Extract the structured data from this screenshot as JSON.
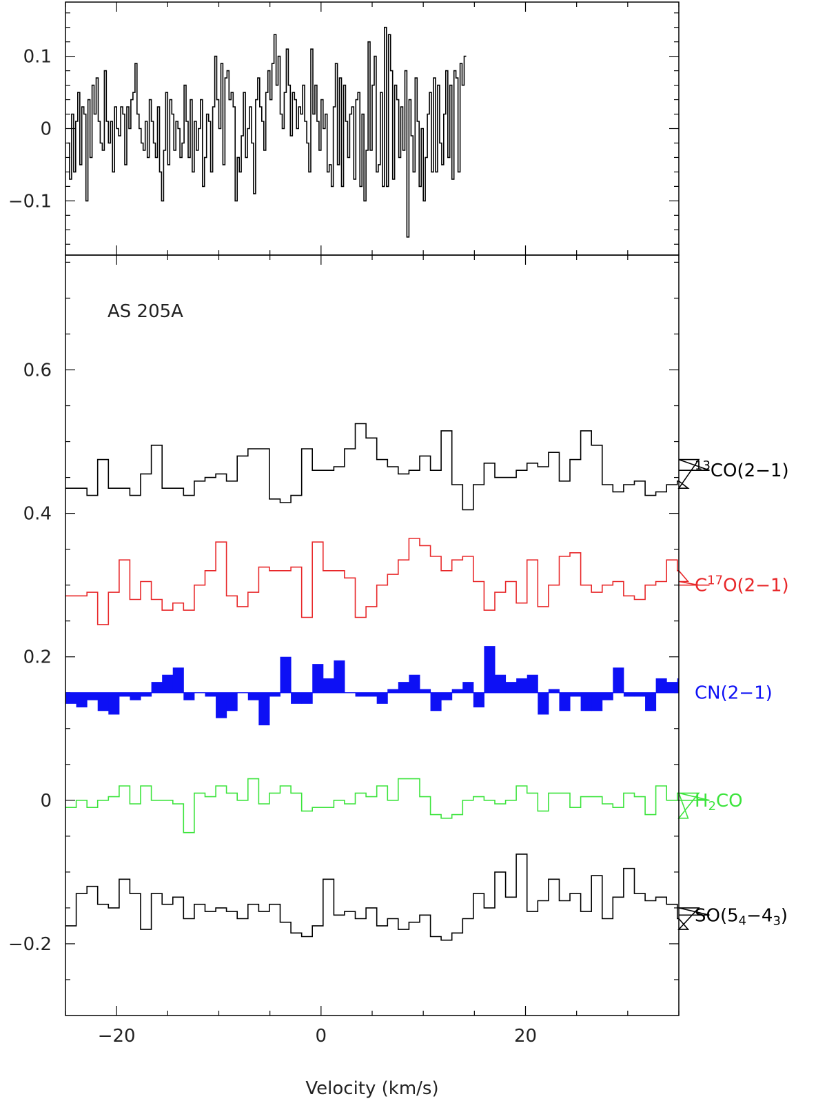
{
  "chart_data": [
    {
      "type": "line",
      "panel": "top",
      "title": "",
      "xlabel": "",
      "ylabel": "",
      "xlim": [
        -25,
        35
      ],
      "ylim": [
        -0.175,
        0.175
      ],
      "x_tick_labels": [],
      "y_ticks": [
        {
          "value": 0.1,
          "label": "0.1"
        },
        {
          "value": 0,
          "label": "0"
        },
        {
          "value": -0.1,
          "label": "−0.1"
        }
      ],
      "grid": false,
      "step": true,
      "color": "#000000",
      "x_start": -24.8,
      "x_step": 0.2,
      "values": [
        -0.02,
        -0.07,
        0.02,
        -0.06,
        0.01,
        0.05,
        -0.05,
        0.03,
        0.02,
        -0.1,
        0.04,
        -0.04,
        0.06,
        0.02,
        0.07,
        0.01,
        -0.02,
        -0.03,
        0.08,
        0.01,
        -0.02,
        0.01,
        -0.06,
        0.03,
        0.0,
        -0.01,
        0.03,
        0.02,
        -0.05,
        0.03,
        0.0,
        0.04,
        0.05,
        0.09,
        0.02,
        0.0,
        -0.02,
        -0.03,
        0.01,
        -0.04,
        0.04,
        0.01,
        -0.02,
        -0.04,
        0.03,
        -0.06,
        -0.1,
        -0.03,
        0.05,
        -0.05,
        0.04,
        0.02,
        -0.03,
        0.01,
        0.0,
        -0.04,
        -0.02,
        0.06,
        0.01,
        -0.04,
        0.04,
        -0.06,
        0.01,
        -0.03,
        0.0,
        0.04,
        -0.08,
        -0.04,
        0.02,
        0.01,
        -0.06,
        0.03,
        0.1,
        0.04,
        0.0,
        0.09,
        -0.05,
        0.07,
        0.08,
        0.04,
        0.05,
        0.03,
        -0.1,
        -0.04,
        -0.06,
        -0.01,
        0.05,
        -0.04,
        0.0,
        0.03,
        -0.02,
        -0.09,
        0.04,
        0.07,
        0.03,
        0.01,
        -0.03,
        0.05,
        0.08,
        0.04,
        0.09,
        0.13,
        0.06,
        0.1,
        0.02,
        0.0,
        0.05,
        0.11,
        0.06,
        -0.01,
        0.05,
        0.04,
        0.0,
        0.03,
        0.02,
        0.06,
        0.01,
        -0.02,
        -0.06,
        0.11,
        0.02,
        0.06,
        0.01,
        -0.03,
        0.04,
        0.0,
        0.02,
        -0.06,
        -0.05,
        -0.08,
        0.03,
        0.09,
        -0.05,
        0.07,
        -0.08,
        0.06,
        0.01,
        -0.04,
        0.02,
        0.03,
        -0.07,
        0.04,
        0.05,
        -0.08,
        0.02,
        -0.1,
        -0.03,
        0.12,
        -0.03,
        0.06,
        0.1,
        -0.06,
        -0.05,
        0.05,
        -0.08,
        0.14,
        -0.08,
        0.13,
        0.08,
        -0.07,
        0.06,
        0.04,
        -0.04,
        0.03,
        -0.03,
        0.08,
        -0.15,
        0.04,
        -0.01,
        -0.06,
        0.07,
        0.01,
        -0.08,
        0.0,
        -0.1,
        -0.04,
        0.02,
        0.05,
        -0.06,
        0.07,
        -0.06,
        0.06,
        -0.02,
        -0.05,
        0.02,
        0.08,
        -0.04,
        0.06,
        -0.07,
        0.08,
        0.07,
        -0.06,
        0.09,
        0.06,
        0.1
      ]
    },
    {
      "type": "line",
      "panel": "bottom",
      "title": "",
      "xlabel": "Velocity (km/s)",
      "ylabel": "",
      "xlim": [
        -25,
        35
      ],
      "ylim": [
        -0.3,
        0.76
      ],
      "x_ticks": [
        {
          "value": -20,
          "label": "−20"
        },
        {
          "value": 0,
          "label": "0"
        },
        {
          "value": 20,
          "label": "20"
        }
      ],
      "y_ticks": [
        {
          "value": 0.6,
          "label": "0.6"
        },
        {
          "value": 0.4,
          "label": "0.4"
        },
        {
          "value": 0.2,
          "label": "0.2"
        },
        {
          "value": 0,
          "label": "0"
        },
        {
          "value": -0.2,
          "label": "−0.2"
        }
      ],
      "grid": false,
      "annotation": "AS 205A",
      "series": [
        {
          "name_parts": [
            {
              "text": "13",
              "sup": true
            },
            {
              "text": "CO(2−1)"
            }
          ],
          "color": "#000000",
          "style": "step",
          "x_start": -25,
          "x_step": 1.05,
          "values": [
            0.435,
            0.435,
            0.425,
            0.475,
            0.435,
            0.435,
            0.425,
            0.455,
            0.495,
            0.435,
            0.435,
            0.425,
            0.445,
            0.45,
            0.455,
            0.445,
            0.48,
            0.49,
            0.49,
            0.42,
            0.415,
            0.425,
            0.49,
            0.46,
            0.46,
            0.465,
            0.49,
            0.525,
            0.505,
            0.475,
            0.465,
            0.455,
            0.46,
            0.48,
            0.46,
            0.515,
            0.44,
            0.405,
            0.44,
            0.47,
            0.45,
            0.45,
            0.46,
            0.47,
            0.465,
            0.485,
            0.445,
            0.475,
            0.515,
            0.495,
            0.44,
            0.43,
            0.44,
            0.445,
            0.425,
            0.43,
            0.44,
            0.445,
            0.435,
            0.475,
            0.46
          ]
        },
        {
          "name_parts": [
            {
              "text": "C"
            },
            {
              "text": "17",
              "sup": true
            },
            {
              "text": "O(2−1)"
            }
          ],
          "color": "#e8282a",
          "style": "step",
          "x_start": -25,
          "x_step": 1.05,
          "values": [
            0.285,
            0.285,
            0.29,
            0.245,
            0.29,
            0.335,
            0.28,
            0.305,
            0.28,
            0.265,
            0.275,
            0.265,
            0.3,
            0.32,
            0.36,
            0.285,
            0.27,
            0.29,
            0.325,
            0.32,
            0.32,
            0.325,
            0.255,
            0.36,
            0.32,
            0.32,
            0.31,
            0.255,
            0.27,
            0.3,
            0.315,
            0.335,
            0.365,
            0.355,
            0.34,
            0.32,
            0.335,
            0.34,
            0.305,
            0.265,
            0.29,
            0.305,
            0.275,
            0.335,
            0.27,
            0.3,
            0.34,
            0.345,
            0.3,
            0.29,
            0.3,
            0.305,
            0.285,
            0.28,
            0.3,
            0.305,
            0.335,
            0.32,
            0.305,
            0.3,
            0.3
          ]
        },
        {
          "name_parts": [
            {
              "text": "CN(2−1)"
            }
          ],
          "color": "#0d10f5",
          "style": "filled-step",
          "baseline": 0.15,
          "x_start": -25,
          "x_step": 1.05,
          "values": [
            0.135,
            0.13,
            0.14,
            0.125,
            0.12,
            0.145,
            0.14,
            0.145,
            0.165,
            0.175,
            0.185,
            0.14,
            0.15,
            0.145,
            0.115,
            0.125,
            0.15,
            0.14,
            0.105,
            0.145,
            0.2,
            0.135,
            0.135,
            0.19,
            0.17,
            0.195,
            0.15,
            0.145,
            0.145,
            0.135,
            0.155,
            0.165,
            0.175,
            0.155,
            0.125,
            0.14,
            0.155,
            0.165,
            0.13,
            0.215,
            0.175,
            0.165,
            0.17,
            0.175,
            0.12,
            0.155,
            0.125,
            0.145,
            0.125,
            0.125,
            0.14,
            0.185,
            0.145,
            0.145,
            0.125,
            0.17,
            0.165,
            0.17,
            0.155,
            0.125,
            0.15
          ]
        },
        {
          "name_parts": [
            {
              "text": "H"
            },
            {
              "text": "2",
              "sub": true
            },
            {
              "text": "CO"
            }
          ],
          "color": "#3ce43c",
          "style": "step",
          "x_start": -25,
          "x_step": 1.05,
          "values": [
            -0.01,
            0.0,
            -0.01,
            0.0,
            0.005,
            0.02,
            -0.005,
            0.02,
            0.0,
            0.0,
            -0.005,
            -0.045,
            0.01,
            0.005,
            0.02,
            0.01,
            0.0,
            0.03,
            -0.005,
            0.01,
            0.02,
            0.01,
            -0.015,
            -0.01,
            -0.01,
            0.0,
            -0.005,
            0.01,
            0.005,
            0.02,
            0.0,
            0.03,
            0.03,
            0.005,
            -0.02,
            -0.025,
            -0.02,
            0.0,
            0.005,
            0.0,
            -0.005,
            0.0,
            0.02,
            0.01,
            -0.015,
            0.01,
            0.01,
            -0.01,
            0.005,
            0.005,
            -0.005,
            -0.01,
            0.01,
            0.005,
            -0.02,
            0.02,
            0.0,
            0.01,
            -0.025,
            0.01,
            0.0
          ]
        },
        {
          "name_parts": [
            {
              "text": "SO(5"
            },
            {
              "text": "4",
              "sub": true
            },
            {
              "text": "−4"
            },
            {
              "text": "3",
              "sub": true
            },
            {
              "text": ")"
            }
          ],
          "color": "#000000",
          "style": "step",
          "x_start": -25,
          "x_step": 1.05,
          "values": [
            -0.175,
            -0.13,
            -0.12,
            -0.145,
            -0.15,
            -0.11,
            -0.13,
            -0.18,
            -0.13,
            -0.145,
            -0.135,
            -0.165,
            -0.145,
            -0.155,
            -0.15,
            -0.155,
            -0.165,
            -0.145,
            -0.155,
            -0.145,
            -0.17,
            -0.185,
            -0.19,
            -0.175,
            -0.11,
            -0.16,
            -0.155,
            -0.165,
            -0.15,
            -0.175,
            -0.165,
            -0.18,
            -0.17,
            -0.16,
            -0.19,
            -0.195,
            -0.185,
            -0.165,
            -0.13,
            -0.15,
            -0.1,
            -0.135,
            -0.075,
            -0.155,
            -0.14,
            -0.11,
            -0.14,
            -0.13,
            -0.155,
            -0.105,
            -0.165,
            -0.135,
            -0.095,
            -0.13,
            -0.14,
            -0.135,
            -0.145,
            -0.165,
            -0.18,
            -0.15,
            -0.16
          ]
        }
      ]
    }
  ]
}
